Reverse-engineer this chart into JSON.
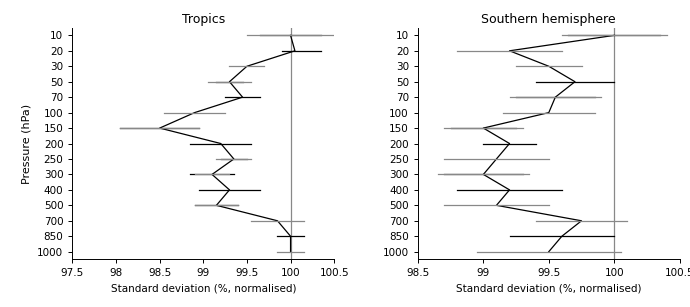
{
  "title1": "Tropics",
  "title2": "Southern hemisphere",
  "xlabel": "Standard deviation (%, normalised)",
  "ylabel": "Pressure (hPa)",
  "pressure_levels": [
    10,
    20,
    30,
    50,
    70,
    100,
    150,
    200,
    250,
    300,
    400,
    500,
    700,
    850,
    1000
  ],
  "tropics": {
    "values": [
      100.0,
      100.05,
      99.5,
      99.3,
      99.45,
      98.9,
      98.5,
      99.2,
      99.35,
      99.1,
      99.3,
      99.15,
      99.85,
      100.0,
      100.0
    ],
    "err_black_lo": [
      0.35,
      0.15,
      0.0,
      0.15,
      0.2,
      0.0,
      0.45,
      0.35,
      0.15,
      0.25,
      0.35,
      0.25,
      0.0,
      0.15,
      0.0
    ],
    "err_black_hi": [
      0.35,
      0.3,
      0.0,
      0.15,
      0.2,
      0.0,
      0.45,
      0.35,
      0.15,
      0.25,
      0.35,
      0.25,
      0.0,
      0.15,
      0.0
    ],
    "err_gray_lo": [
      0.5,
      0.0,
      0.2,
      0.25,
      0.0,
      0.35,
      0.45,
      0.0,
      0.2,
      0.2,
      0.0,
      0.25,
      0.3,
      0.0,
      0.15
    ],
    "err_gray_hi": [
      0.5,
      0.0,
      0.2,
      0.25,
      0.0,
      0.35,
      0.45,
      0.0,
      0.2,
      0.2,
      0.0,
      0.25,
      0.3,
      0.0,
      0.15
    ]
  },
  "southern": {
    "values": [
      100.0,
      99.2,
      99.5,
      99.7,
      99.55,
      99.5,
      99.0,
      99.2,
      99.1,
      99.0,
      99.2,
      99.1,
      99.75,
      99.6,
      99.5
    ],
    "err_black_lo": [
      0.35,
      0.0,
      0.0,
      0.3,
      0.3,
      0.0,
      0.25,
      0.2,
      0.0,
      0.3,
      0.4,
      0.0,
      0.0,
      0.4,
      0.0
    ],
    "err_black_hi": [
      0.35,
      0.0,
      0.0,
      0.3,
      0.3,
      0.0,
      0.25,
      0.2,
      0.0,
      0.3,
      0.4,
      0.0,
      0.0,
      0.4,
      0.0
    ],
    "err_gray_lo": [
      0.4,
      0.4,
      0.25,
      0.0,
      0.35,
      0.35,
      0.3,
      0.0,
      0.4,
      0.35,
      0.0,
      0.4,
      0.35,
      0.0,
      0.55
    ],
    "err_gray_hi": [
      0.4,
      0.4,
      0.25,
      0.0,
      0.35,
      0.35,
      0.3,
      0.0,
      0.4,
      0.35,
      0.0,
      0.4,
      0.35,
      0.0,
      0.55
    ]
  },
  "tropics_xlim": [
    97.5,
    100.5
  ],
  "southern_xlim": [
    98.5,
    100.5
  ],
  "tropics_xticks": [
    97.5,
    98.0,
    98.5,
    99.0,
    99.5,
    100.0,
    100.5
  ],
  "southern_xticks": [
    98.5,
    99.0,
    99.5,
    100.0,
    100.5
  ],
  "vline_x": 100.0,
  "black_color": "#000000",
  "gray_color": "#888888",
  "line_color": "#000000",
  "figsize": [
    6.9,
    3.07
  ],
  "dpi": 100
}
